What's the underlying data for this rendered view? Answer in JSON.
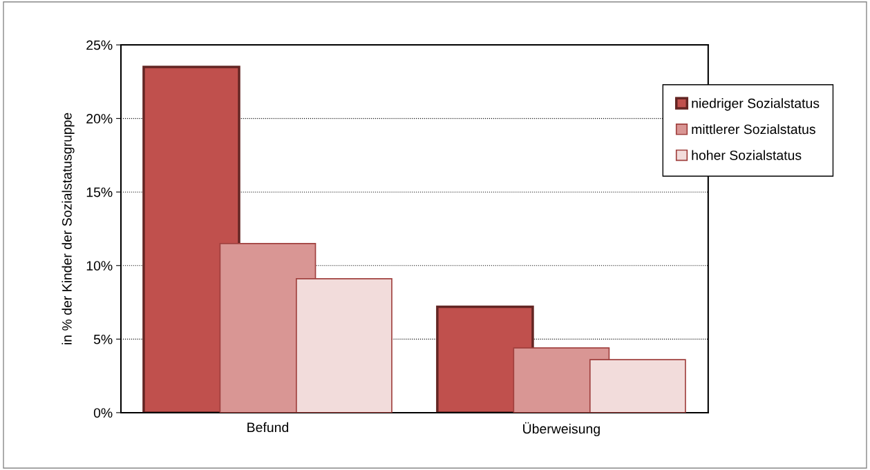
{
  "chart_data": {
    "type": "bar",
    "ylabel": "in % der Kinder der Sozialstatusgruppe",
    "categories": [
      "Befund",
      "Überweisung"
    ],
    "series": [
      {
        "name": "niedriger Sozialstatus",
        "color": "#c0504d",
        "values": [
          23.5,
          7.2
        ]
      },
      {
        "name": "mittlerer Sozialstatus",
        "color": "#d99694",
        "values": [
          11.5,
          4.4
        ]
      },
      {
        "name": "hoher Sozialstatus",
        "color": "#f2dcdb",
        "values": [
          9.1,
          3.6
        ]
      }
    ],
    "ylim": [
      0,
      25
    ],
    "yticks": [
      {
        "value": 0,
        "label": "0%"
      },
      {
        "value": 5,
        "label": "5%"
      },
      {
        "value": 10,
        "label": "10%"
      },
      {
        "value": 15,
        "label": "15%"
      },
      {
        "value": 20,
        "label": "20%"
      },
      {
        "value": 25,
        "label": "25%"
      }
    ],
    "grid": "y",
    "legend": "top right"
  }
}
